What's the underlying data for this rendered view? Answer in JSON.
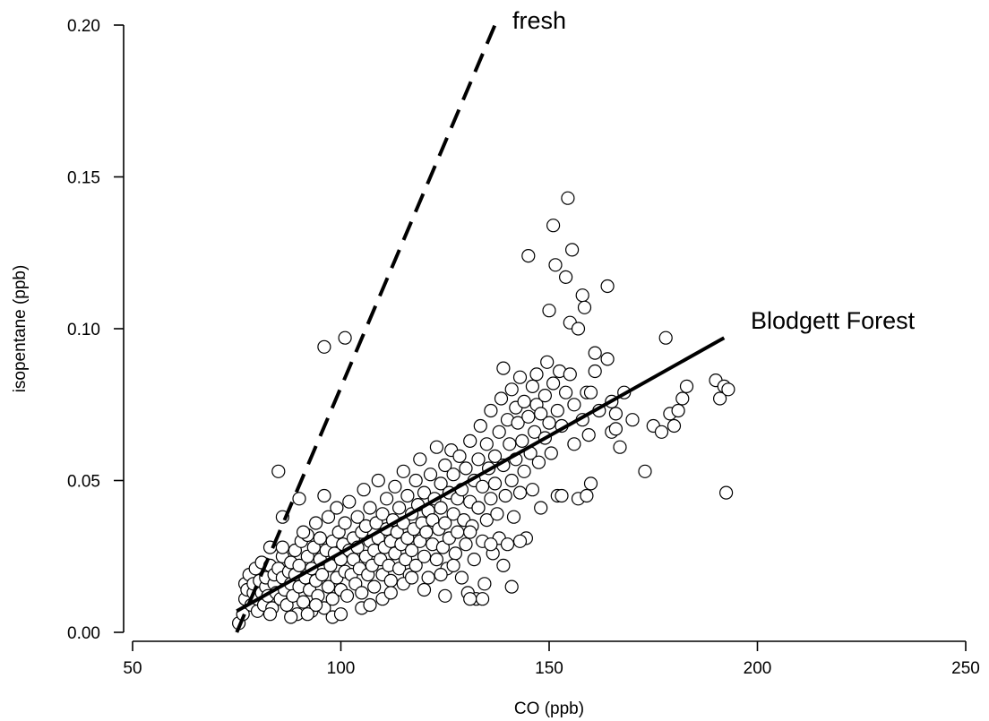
{
  "chart_data": {
    "type": "scatter",
    "xlabel": "CO (ppb)",
    "ylabel": "isopentane (ppb)",
    "xlim": [
      50,
      250
    ],
    "ylim": [
      0.0,
      0.2
    ],
    "xticks": [
      50,
      100,
      150,
      200,
      250
    ],
    "xtick_labels": [
      "50",
      "100",
      "150",
      "200",
      "250"
    ],
    "yticks": [
      0.0,
      0.05,
      0.1,
      0.15,
      0.2
    ],
    "ytick_labels": [
      "0.00",
      "0.05",
      "0.10",
      "0.15",
      "0.20"
    ],
    "grid": false,
    "marker": "open-circle",
    "points": [
      [
        75.5,
        0.003
      ],
      [
        76.5,
        0.006
      ],
      [
        77,
        0.011
      ],
      [
        77,
        0.016
      ],
      [
        77.5,
        0.014
      ],
      [
        78,
        0.019
      ],
      [
        78.5,
        0.009
      ],
      [
        79,
        0.013
      ],
      [
        79,
        0.016
      ],
      [
        79.5,
        0.021
      ],
      [
        80,
        0.007
      ],
      [
        80,
        0.011
      ],
      [
        80.5,
        0.017
      ],
      [
        81,
        0.013
      ],
      [
        81,
        0.023
      ],
      [
        81.5,
        0.009
      ],
      [
        82,
        0.015
      ],
      [
        82,
        0.018
      ],
      [
        82.5,
        0.012
      ],
      [
        83,
        0.022
      ],
      [
        83,
        0.028
      ],
      [
        83.5,
        0.008
      ],
      [
        84,
        0.016
      ],
      [
        84,
        0.019
      ],
      [
        84.5,
        0.013
      ],
      [
        85,
        0.021
      ],
      [
        85,
        0.053
      ],
      [
        85.5,
        0.011
      ],
      [
        86,
        0.018
      ],
      [
        86,
        0.025
      ],
      [
        86.5,
        0.014
      ],
      [
        86,
        0.038
      ],
      [
        87,
        0.009
      ],
      [
        87.5,
        0.02
      ],
      [
        88,
        0.016
      ],
      [
        88,
        0.023
      ],
      [
        88.5,
        0.012
      ],
      [
        89,
        0.027
      ],
      [
        89,
        0.019
      ],
      [
        89.5,
        0.006
      ],
      [
        90,
        0.015
      ],
      [
        90,
        0.022
      ],
      [
        90.5,
        0.03
      ],
      [
        90,
        0.044
      ],
      [
        91,
        0.01
      ],
      [
        91.5,
        0.018
      ],
      [
        92,
        0.025
      ],
      [
        92,
        0.032
      ],
      [
        92.5,
        0.014
      ],
      [
        93,
        0.007
      ],
      [
        93,
        0.021
      ],
      [
        93.5,
        0.028
      ],
      [
        94,
        0.017
      ],
      [
        94,
        0.036
      ],
      [
        94.5,
        0.012
      ],
      [
        95,
        0.024
      ],
      [
        95,
        0.031
      ],
      [
        95.5,
        0.019
      ],
      [
        96,
        0.008
      ],
      [
        96,
        0.045
      ],
      [
        96.5,
        0.027
      ],
      [
        97,
        0.015
      ],
      [
        97,
        0.038
      ],
      [
        97.5,
        0.022
      ],
      [
        98,
        0.03
      ],
      [
        98,
        0.011
      ],
      [
        98.5,
        0.026
      ],
      [
        99,
        0.018
      ],
      [
        99,
        0.041
      ],
      [
        99.5,
        0.033
      ],
      [
        100,
        0.014
      ],
      [
        100,
        0.024
      ],
      [
        100.5,
        0.029
      ],
      [
        101,
        0.02
      ],
      [
        101,
        0.036
      ],
      [
        101.5,
        0.012
      ],
      [
        102,
        0.027
      ],
      [
        102,
        0.043
      ],
      [
        102.5,
        0.019
      ],
      [
        103,
        0.031
      ],
      [
        103,
        0.024
      ],
      [
        103.5,
        0.016
      ],
      [
        104,
        0.038
      ],
      [
        104,
        0.028
      ],
      [
        104.5,
        0.021
      ],
      [
        105,
        0.033
      ],
      [
        105,
        0.013
      ],
      [
        105.5,
        0.047
      ],
      [
        106,
        0.025
      ],
      [
        106,
        0.035
      ],
      [
        106.5,
        0.019
      ],
      [
        107,
        0.03
      ],
      [
        107,
        0.041
      ],
      [
        107.5,
        0.022
      ],
      [
        108,
        0.027
      ],
      [
        108,
        0.015
      ],
      [
        108.5,
        0.036
      ],
      [
        109,
        0.031
      ],
      [
        109,
        0.05
      ],
      [
        109.5,
        0.024
      ],
      [
        110,
        0.019
      ],
      [
        110,
        0.039
      ],
      [
        110.5,
        0.028
      ],
      [
        111,
        0.034
      ],
      [
        111,
        0.044
      ],
      [
        111.5,
        0.022
      ],
      [
        112,
        0.03
      ],
      [
        112,
        0.017
      ],
      [
        112.5,
        0.037
      ],
      [
        113,
        0.026
      ],
      [
        113,
        0.048
      ],
      [
        113.5,
        0.033
      ],
      [
        114,
        0.021
      ],
      [
        114,
        0.041
      ],
      [
        114.5,
        0.029
      ],
      [
        115,
        0.036
      ],
      [
        115,
        0.053
      ],
      [
        115.5,
        0.024
      ],
      [
        116,
        0.031
      ],
      [
        116,
        0.045
      ],
      [
        116.5,
        0.019
      ],
      [
        117,
        0.039
      ],
      [
        117,
        0.027
      ],
      [
        117.5,
        0.034
      ],
      [
        118,
        0.05
      ],
      [
        118,
        0.022
      ],
      [
        118.5,
        0.042
      ],
      [
        119,
        0.03
      ],
      [
        119,
        0.057
      ],
      [
        119.5,
        0.036
      ],
      [
        120,
        0.025
      ],
      [
        120,
        0.046
      ],
      [
        120.5,
        0.033
      ],
      [
        121,
        0.04
      ],
      [
        121,
        0.018
      ],
      [
        121.5,
        0.052
      ],
      [
        122,
        0.029
      ],
      [
        122,
        0.037
      ],
      [
        122.5,
        0.044
      ],
      [
        123,
        0.024
      ],
      [
        123,
        0.061
      ],
      [
        123.5,
        0.034
      ],
      [
        124,
        0.049
      ],
      [
        124,
        0.041
      ],
      [
        124.5,
        0.028
      ],
      [
        125,
        0.055
      ],
      [
        125,
        0.036
      ],
      [
        125.5,
        0.021
      ],
      [
        126,
        0.046
      ],
      [
        126,
        0.031
      ],
      [
        126.5,
        0.06
      ],
      [
        127,
        0.039
      ],
      [
        127,
        0.052
      ],
      [
        127.5,
        0.026
      ],
      [
        128,
        0.044
      ],
      [
        128,
        0.033
      ],
      [
        128.5,
        0.058
      ],
      [
        129,
        0.047
      ],
      [
        129,
        0.018
      ],
      [
        129.5,
        0.037
      ],
      [
        130,
        0.054
      ],
      [
        130,
        0.029
      ],
      [
        130.5,
        0.013
      ],
      [
        131,
        0.043
      ],
      [
        131,
        0.063
      ],
      [
        131.5,
        0.035
      ],
      [
        132,
        0.05
      ],
      [
        132,
        0.024
      ],
      [
        132.5,
        0.011
      ],
      [
        133,
        0.057
      ],
      [
        133,
        0.041
      ],
      [
        133.5,
        0.068
      ],
      [
        134,
        0.03
      ],
      [
        134,
        0.048
      ],
      [
        134.5,
        0.016
      ],
      [
        135,
        0.062
      ],
      [
        135,
        0.037
      ],
      [
        135.5,
        0.054
      ],
      [
        136,
        0.044
      ],
      [
        136,
        0.073
      ],
      [
        136.5,
        0.026
      ],
      [
        137,
        0.058
      ],
      [
        137,
        0.049
      ],
      [
        137.5,
        0.039
      ],
      [
        138,
        0.066
      ],
      [
        138,
        0.031
      ],
      [
        138.5,
        0.077
      ],
      [
        139,
        0.055
      ],
      [
        139,
        0.087
      ],
      [
        139.5,
        0.045
      ],
      [
        140,
        0.07
      ],
      [
        140,
        0.029
      ],
      [
        140.5,
        0.062
      ],
      [
        141,
        0.08
      ],
      [
        141,
        0.05
      ],
      [
        141.5,
        0.038
      ],
      [
        142,
        0.074
      ],
      [
        142,
        0.057
      ],
      [
        142.5,
        0.069
      ],
      [
        143,
        0.046
      ],
      [
        143,
        0.084
      ],
      [
        143.5,
        0.063
      ],
      [
        144,
        0.076
      ],
      [
        144,
        0.053
      ],
      [
        144.5,
        0.031
      ],
      [
        145,
        0.124
      ],
      [
        145,
        0.071
      ],
      [
        145.5,
        0.059
      ],
      [
        146,
        0.081
      ],
      [
        146,
        0.047
      ],
      [
        146.5,
        0.066
      ],
      [
        147,
        0.075
      ],
      [
        147,
        0.085
      ],
      [
        147.5,
        0.056
      ],
      [
        148,
        0.072
      ],
      [
        148,
        0.041
      ],
      [
        149,
        0.078
      ],
      [
        149,
        0.064
      ],
      [
        149.5,
        0.089
      ],
      [
        150,
        0.106
      ],
      [
        150,
        0.069
      ],
      [
        150.5,
        0.059
      ],
      [
        151,
        0.082
      ],
      [
        151,
        0.134
      ],
      [
        151.5,
        0.121
      ],
      [
        152,
        0.073
      ],
      [
        152,
        0.045
      ],
      [
        152.5,
        0.086
      ],
      [
        153,
        0.068
      ],
      [
        153,
        0.045
      ],
      [
        154,
        0.079
      ],
      [
        154,
        0.117
      ],
      [
        154.5,
        0.143
      ],
      [
        155,
        0.102
      ],
      [
        155,
        0.085
      ],
      [
        155.5,
        0.126
      ],
      [
        156,
        0.075
      ],
      [
        156,
        0.062
      ],
      [
        157,
        0.1
      ],
      [
        157,
        0.044
      ],
      [
        158,
        0.111
      ],
      [
        158,
        0.07
      ],
      [
        158.5,
        0.107
      ],
      [
        159,
        0.045
      ],
      [
        159,
        0.079
      ],
      [
        159.5,
        0.065
      ],
      [
        160,
        0.049
      ],
      [
        160,
        0.079
      ],
      [
        161,
        0.086
      ],
      [
        161,
        0.092
      ],
      [
        162,
        0.073
      ],
      [
        164,
        0.114
      ],
      [
        164,
        0.09
      ],
      [
        165,
        0.076
      ],
      [
        165,
        0.066
      ],
      [
        166,
        0.067
      ],
      [
        166,
        0.072
      ],
      [
        167,
        0.061
      ],
      [
        168,
        0.079
      ],
      [
        170,
        0.07
      ],
      [
        173,
        0.053
      ],
      [
        175,
        0.068
      ],
      [
        177,
        0.066
      ],
      [
        178,
        0.097
      ],
      [
        179,
        0.072
      ],
      [
        180,
        0.068
      ],
      [
        181,
        0.073
      ],
      [
        182,
        0.077
      ],
      [
        183,
        0.081
      ],
      [
        190,
        0.083
      ],
      [
        191,
        0.077
      ],
      [
        192,
        0.081
      ],
      [
        193,
        0.08
      ],
      [
        192.5,
        0.046
      ],
      [
        96,
        0.094
      ],
      [
        101,
        0.097
      ],
      [
        86,
        0.028
      ],
      [
        88,
        0.005
      ],
      [
        91,
        0.033
      ],
      [
        98,
        0.005
      ],
      [
        105,
        0.008
      ],
      [
        110,
        0.011
      ],
      [
        115,
        0.016
      ],
      [
        120,
        0.014
      ],
      [
        125,
        0.012
      ],
      [
        131,
        0.011
      ],
      [
        134,
        0.011
      ],
      [
        141,
        0.015
      ],
      [
        143,
        0.03
      ],
      [
        139,
        0.022
      ],
      [
        136,
        0.029
      ],
      [
        133,
        0.041
      ],
      [
        131,
        0.033
      ],
      [
        127,
        0.022
      ],
      [
        124,
        0.019
      ],
      [
        117,
        0.018
      ],
      [
        112,
        0.013
      ],
      [
        107,
        0.009
      ],
      [
        100,
        0.006
      ],
      [
        94,
        0.009
      ],
      [
        92,
        0.006
      ],
      [
        83,
        0.006
      ]
    ],
    "series": [
      {
        "name": "fresh",
        "style": "dashed",
        "x": [
          75,
          137
        ],
        "y": [
          0.0,
          0.2
        ]
      },
      {
        "name": "Blodgett Forest",
        "style": "solid",
        "x": [
          75,
          192
        ],
        "y": [
          0.007,
          0.097
        ]
      }
    ],
    "annotations": [
      "fresh",
      "Blodgett Forest"
    ]
  }
}
